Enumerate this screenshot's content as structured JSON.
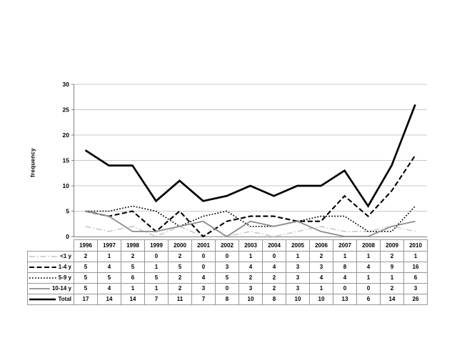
{
  "style": {
    "background": "#ffffff",
    "axis_color": "#808080",
    "grid_color": "#c8c8c8",
    "table_border_color": "#969696",
    "text_color": "#000000"
  },
  "chart_data": {
    "type": "line",
    "title": "",
    "xlabel": "",
    "ylabel": "frequency",
    "ylim": [
      0,
      30
    ],
    "yticks": [
      0,
      5,
      10,
      15,
      20,
      25,
      30
    ],
    "grid": true,
    "legend_position": "data-table-row-headers",
    "categories": [
      "1996",
      "1997",
      "1998",
      "1999",
      "2000",
      "2001",
      "2002",
      "2003",
      "2004",
      "2005",
      "2006",
      "2007",
      "2008",
      "2009",
      "2010"
    ],
    "series": [
      {
        "name": "<1 y",
        "style": "dashdot",
        "color": "#c4c4c4",
        "width": 1.5,
        "values": [
          2,
          1,
          2,
          0,
          2,
          0,
          0,
          1,
          0,
          1,
          2,
          1,
          1,
          2,
          1
        ]
      },
      {
        "name": "1-4 y",
        "style": "dashed",
        "color": "#000000",
        "width": 2.1,
        "values": [
          5,
          4,
          5,
          1,
          5,
          0,
          3,
          4,
          4,
          3,
          3,
          8,
          4,
          9,
          16
        ]
      },
      {
        "name": "5-9 y",
        "style": "dotted",
        "color": "#000000",
        "width": 1.6,
        "values": [
          5,
          5,
          6,
          5,
          2,
          4,
          5,
          2,
          2,
          3,
          4,
          4,
          1,
          1,
          6
        ]
      },
      {
        "name": "10-14 y",
        "style": "solid",
        "color": "#8c8c8c",
        "width": 1.8,
        "values": [
          5,
          4,
          1,
          1,
          2,
          3,
          0,
          3,
          2,
          3,
          1,
          0,
          0,
          2,
          3
        ]
      },
      {
        "name": "Total",
        "style": "solid",
        "color": "#000000",
        "width": 2.7,
        "values": [
          17,
          14,
          14,
          7,
          11,
          7,
          8,
          10,
          8,
          10,
          10,
          13,
          6,
          14,
          26
        ]
      }
    ]
  }
}
